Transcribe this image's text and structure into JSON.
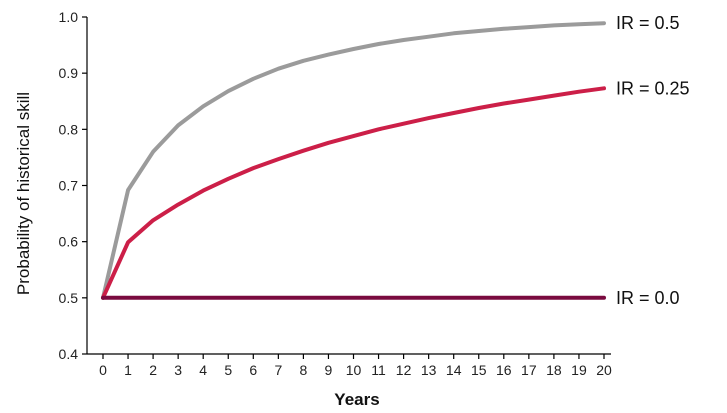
{
  "chart_data": {
    "type": "line",
    "title": "",
    "xlabel": "Years",
    "ylabel": "Probability of historical skill",
    "xlim": [
      0,
      20
    ],
    "ylim": [
      0.4,
      1.0
    ],
    "x_ticks": [
      0,
      1,
      2,
      3,
      4,
      5,
      6,
      7,
      8,
      9,
      10,
      11,
      12,
      13,
      14,
      15,
      16,
      17,
      18,
      19,
      20
    ],
    "y_ticks": [
      "0.4",
      "0.5",
      "0.6",
      "0.7",
      "0.8",
      "0.9",
      "1.0"
    ],
    "grid": false,
    "x": [
      0,
      1,
      2,
      3,
      4,
      5,
      6,
      7,
      8,
      9,
      10,
      11,
      12,
      13,
      14,
      15,
      16,
      17,
      18,
      19,
      20
    ],
    "series": [
      {
        "name": "IR = 0.5",
        "color": "#9b9b9b",
        "values": [
          0.5,
          0.692,
          0.76,
          0.807,
          0.841,
          0.868,
          0.89,
          0.908,
          0.922,
          0.933,
          0.943,
          0.952,
          0.959,
          0.965,
          0.971,
          0.975,
          0.979,
          0.982,
          0.985,
          0.987,
          0.989
        ]
      },
      {
        "name": "IR = 0.25",
        "color": "#cc1f48",
        "values": [
          0.5,
          0.599,
          0.638,
          0.666,
          0.691,
          0.712,
          0.731,
          0.747,
          0.762,
          0.776,
          0.788,
          0.8,
          0.81,
          0.82,
          0.829,
          0.838,
          0.846,
          0.853,
          0.86,
          0.867,
          0.873
        ]
      },
      {
        "name": "IR = 0.0",
        "color": "#7a0a3f",
        "values": [
          0.5,
          0.5,
          0.5,
          0.5,
          0.5,
          0.5,
          0.5,
          0.5,
          0.5,
          0.5,
          0.5,
          0.5,
          0.5,
          0.5,
          0.5,
          0.5,
          0.5,
          0.5,
          0.5,
          0.5,
          0.5
        ]
      }
    ]
  }
}
